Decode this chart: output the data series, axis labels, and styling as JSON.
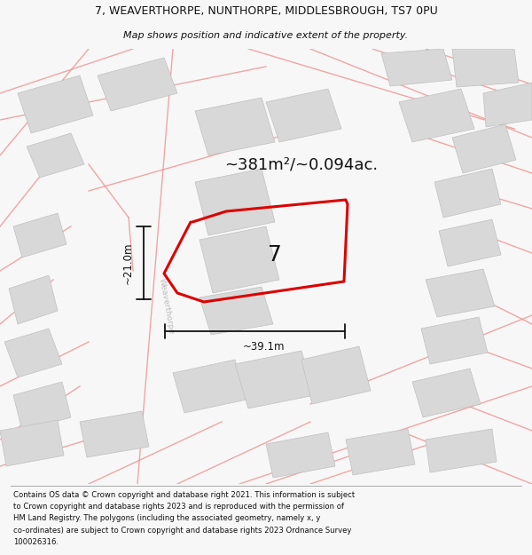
{
  "title_line1": "7, WEAVERTHORPE, NUNTHORPE, MIDDLESBROUGH, TS7 0PU",
  "title_line2": "Map shows position and indicative extent of the property.",
  "area_label": "~381m²/~0.094ac.",
  "width_label": "~39.1m",
  "height_label": "~21.0m",
  "number_label": "7",
  "road_label": "Weaverthorpe",
  "footer_lines": [
    "Contains OS data © Crown copyright and database right 2021. This information is subject",
    "to Crown copyright and database rights 2023 and is reproduced with the permission of",
    "HM Land Registry. The polygons (including the associated geometry, namely x, y",
    "co-ordinates) are subject to Crown copyright and database rights 2023 Ordnance Survey",
    "100026316."
  ],
  "bg_color": "#f7f7f7",
  "map_bg": "#ffffff",
  "plot_color": "#dd0000",
  "neighbor_fill": "#d8d8d8",
  "neighbor_edge": "#c0c0c0",
  "road_line_color": "#f09090",
  "dim_line_color": "#111111",
  "text_color": "#111111",
  "road_text_color": "#bbbbbb"
}
